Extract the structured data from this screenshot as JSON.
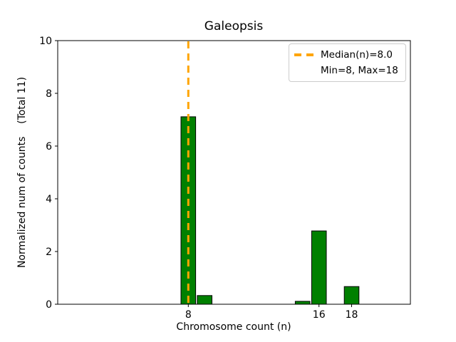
{
  "chart_data": {
    "type": "bar",
    "title": "Galeopsis",
    "xlabel": "Chromosome count (n)",
    "ylabel": "Normalized num of counts    (Total 11)",
    "x": [
      8,
      9,
      15,
      16,
      18
    ],
    "values": [
      7.11,
      0.33,
      0.11,
      2.78,
      0.67
    ],
    "bar_width": 0.9,
    "bar_color": "#008000",
    "bar_edge_color": "#000000",
    "xlim": [
      0,
      21.6
    ],
    "ylim": [
      0,
      10
    ],
    "xticks": [
      8,
      16,
      18
    ],
    "yticks": [
      0,
      2,
      4,
      6,
      8,
      10
    ],
    "grid": false,
    "median_line": {
      "x": 8.0,
      "color": "#FFA500",
      "style": "dashed",
      "label": "Median(n)=8.0"
    },
    "legend": {
      "position": "upper right",
      "entries": [
        "Median(n)=8.0",
        "Min=8, Max=18"
      ]
    }
  }
}
